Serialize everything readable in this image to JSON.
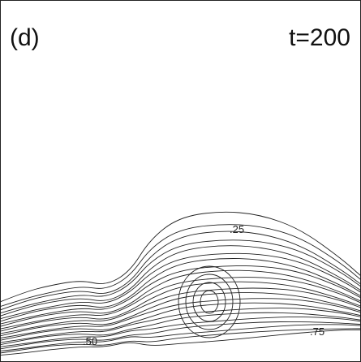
{
  "panel_label": "(d)",
  "time_label": "t=200",
  "contour_labels": [
    ".25",
    ".50",
    ".75"
  ]
}
